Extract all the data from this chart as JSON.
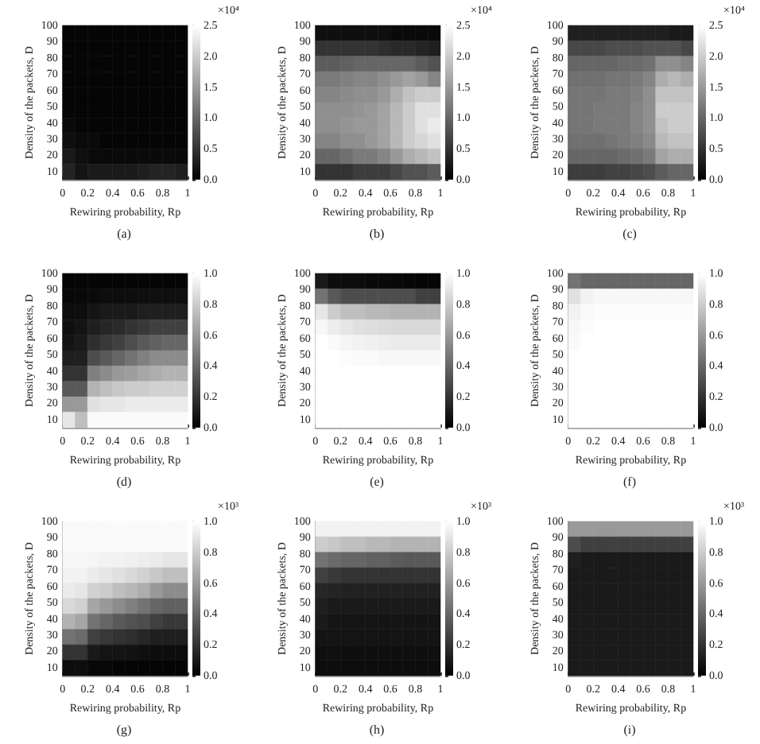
{
  "chart_data": [
    {
      "type": "heatmap",
      "title": "(a)",
      "xlabel": "Rewiring probability, Rp",
      "ylabel": "Density of the packets, D",
      "clabel": "×10⁴",
      "xlim": [
        0,
        1
      ],
      "xticks": [
        0,
        0.2,
        0.4,
        0.6,
        0.8,
        1
      ],
      "ylim": [
        5,
        100
      ],
      "yticks": [
        10,
        20,
        30,
        40,
        50,
        60,
        70,
        80,
        90,
        100
      ],
      "clim": [
        0,
        2.5
      ],
      "cticks": [
        {
          "value": 0,
          "label": "0.0"
        },
        {
          "value": 0.5,
          "label": "0.5"
        },
        {
          "value": 1,
          "label": "1.0"
        },
        {
          "value": 1.5,
          "label": "1.5"
        },
        {
          "value": 2,
          "label": "2.0"
        },
        {
          "value": 2.5,
          "label": "2.5"
        }
      ],
      "cells": [
        [
          0.05,
          0.05,
          0.05,
          0.05,
          0.05,
          0.05,
          0.05,
          0.05,
          0.05,
          0.05
        ],
        [
          0.05,
          0.05,
          0.05,
          0.05,
          0.05,
          0.05,
          0.05,
          0.05,
          0.05,
          0.05
        ],
        [
          0.05,
          0.05,
          0.05,
          0.05,
          0.05,
          0.05,
          0.05,
          0.05,
          0.05,
          0.05
        ],
        [
          0.05,
          0.05,
          0.05,
          0.05,
          0.05,
          0.05,
          0.05,
          0.05,
          0.05,
          0.05
        ],
        [
          0.05,
          0.05,
          0.05,
          0.05,
          0.05,
          0.05,
          0.05,
          0.05,
          0.05,
          0.05
        ],
        [
          0.05,
          0.05,
          0.05,
          0.05,
          0.05,
          0.05,
          0.05,
          0.05,
          0.05,
          0.05
        ],
        [
          0.1,
          0.05,
          0.05,
          0.05,
          0.05,
          0.05,
          0.05,
          0.05,
          0.05,
          0.05
        ],
        [
          0.15,
          0.1,
          0.1,
          0.05,
          0.05,
          0.05,
          0.05,
          0.05,
          0.05,
          0.05
        ],
        [
          0.25,
          0.15,
          0.1,
          0.1,
          0.1,
          0.1,
          0.1,
          0.1,
          0.1,
          0.1
        ],
        [
          0.35,
          0.2,
          0.25,
          0.25,
          0.25,
          0.25,
          0.3,
          0.35,
          0.35,
          0.3
        ]
      ]
    },
    {
      "type": "heatmap",
      "title": "(b)",
      "xlabel": "Rewiring probability, Rp",
      "ylabel": "Density of the packets, D",
      "clabel": "×10⁴",
      "xlim": [
        0,
        1
      ],
      "xticks": [
        0,
        0.2,
        0.4,
        0.6,
        0.8,
        1
      ],
      "ylim": [
        5,
        100
      ],
      "yticks": [
        10,
        20,
        30,
        40,
        50,
        60,
        70,
        80,
        90,
        100
      ],
      "clim": [
        0,
        2.5
      ],
      "cticks": [
        {
          "value": 0,
          "label": "0.0"
        },
        {
          "value": 0.5,
          "label": "0.5"
        },
        {
          "value": 1,
          "label": "1.0"
        },
        {
          "value": 1.5,
          "label": "1.5"
        },
        {
          "value": 2,
          "label": "2.0"
        },
        {
          "value": 2.5,
          "label": "2.5"
        }
      ],
      "cells": [
        [
          0.15,
          0.15,
          0.15,
          0.15,
          0.15,
          0.15,
          0.1,
          0.1,
          0.1,
          0.1
        ],
        [
          0.5,
          0.5,
          0.5,
          0.5,
          0.5,
          0.45,
          0.4,
          0.4,
          0.35,
          0.3
        ],
        [
          0.9,
          0.9,
          0.95,
          1.0,
          1.0,
          1.0,
          1.0,
          1.0,
          0.9,
          0.8
        ],
        [
          1.2,
          1.2,
          1.25,
          1.3,
          1.3,
          1.4,
          1.5,
          1.6,
          1.5,
          1.3
        ],
        [
          1.3,
          1.3,
          1.35,
          1.4,
          1.4,
          1.5,
          1.7,
          1.9,
          2.0,
          2.0
        ],
        [
          1.4,
          1.4,
          1.4,
          1.45,
          1.5,
          1.6,
          1.8,
          2.0,
          2.2,
          2.2
        ],
        [
          1.4,
          1.4,
          1.45,
          1.5,
          1.5,
          1.6,
          1.8,
          2.0,
          2.2,
          2.3
        ],
        [
          1.3,
          1.3,
          1.4,
          1.4,
          1.5,
          1.6,
          1.8,
          2.0,
          2.1,
          2.2
        ],
        [
          1.0,
          1.0,
          1.1,
          1.2,
          1.2,
          1.3,
          1.5,
          1.7,
          1.8,
          1.9
        ],
        [
          0.5,
          0.5,
          0.5,
          0.6,
          0.6,
          0.6,
          0.7,
          0.8,
          0.8,
          0.9
        ]
      ]
    },
    {
      "type": "heatmap",
      "title": "(c)",
      "xlabel": "Rewiring probability, Rp",
      "ylabel": "Density of the packets, D",
      "clabel": "×10⁴",
      "xlim": [
        0,
        1
      ],
      "xticks": [
        0,
        0.2,
        0.4,
        0.6,
        0.8,
        1
      ],
      "ylim": [
        5,
        100
      ],
      "yticks": [
        10,
        20,
        30,
        40,
        50,
        60,
        70,
        80,
        90,
        100
      ],
      "clim": [
        0,
        2.5
      ],
      "cticks": [
        {
          "value": 0,
          "label": "0.0"
        },
        {
          "value": 0.5,
          "label": "0.5"
        },
        {
          "value": 1,
          "label": "1.0"
        },
        {
          "value": 1.5,
          "label": "1.5"
        },
        {
          "value": 2,
          "label": "2.0"
        },
        {
          "value": 2.5,
          "label": "2.5"
        }
      ],
      "cells": [
        [
          0.3,
          0.3,
          0.3,
          0.3,
          0.3,
          0.3,
          0.3,
          0.3,
          0.25,
          0.25
        ],
        [
          0.7,
          0.7,
          0.7,
          0.75,
          0.75,
          0.75,
          0.8,
          0.8,
          0.8,
          0.7
        ],
        [
          1.0,
          1.0,
          1.0,
          1.0,
          1.05,
          1.05,
          1.1,
          1.4,
          1.4,
          1.3
        ],
        [
          1.1,
          1.1,
          1.1,
          1.15,
          1.15,
          1.2,
          1.3,
          1.7,
          1.8,
          1.7
        ],
        [
          1.15,
          1.15,
          1.15,
          1.2,
          1.2,
          1.25,
          1.4,
          1.9,
          1.9,
          1.9
        ],
        [
          1.15,
          1.15,
          1.2,
          1.2,
          1.2,
          1.3,
          1.4,
          2.0,
          2.0,
          2.0
        ],
        [
          1.15,
          1.15,
          1.2,
          1.2,
          1.2,
          1.3,
          1.4,
          1.9,
          2.0,
          2.0
        ],
        [
          1.1,
          1.1,
          1.1,
          1.15,
          1.2,
          1.25,
          1.35,
          1.8,
          1.9,
          1.9
        ],
        [
          1.0,
          1.0,
          1.0,
          1.0,
          1.05,
          1.1,
          1.2,
          1.6,
          1.7,
          1.7
        ],
        [
          0.6,
          0.6,
          0.6,
          0.65,
          0.65,
          0.7,
          0.75,
          0.9,
          1.0,
          1.0
        ]
      ]
    },
    {
      "type": "heatmap",
      "title": "(d)",
      "xlabel": "Rewiring probability, Rp",
      "ylabel": "Density of the packets, D",
      "xlim": [
        0,
        1
      ],
      "xticks": [
        0,
        0.2,
        0.4,
        0.6,
        0.8,
        1
      ],
      "ylim": [
        5,
        100
      ],
      "yticks": [
        10,
        20,
        30,
        40,
        50,
        60,
        70,
        80,
        90,
        100
      ],
      "clim": [
        0,
        1
      ],
      "cticks": [
        {
          "value": 0,
          "label": "0.0"
        },
        {
          "value": 0.2,
          "label": "0.2"
        },
        {
          "value": 0.4,
          "label": "0.4"
        },
        {
          "value": 0.6,
          "label": "0.6"
        },
        {
          "value": 0.8,
          "label": "0.8"
        },
        {
          "value": 1,
          "label": "1.0"
        }
      ],
      "cells": [
        [
          0.02,
          0.02,
          0.02,
          0.02,
          0.02,
          0.02,
          0.02,
          0.02,
          0.02,
          0.02
        ],
        [
          0.03,
          0.03,
          0.04,
          0.05,
          0.05,
          0.05,
          0.06,
          0.06,
          0.06,
          0.06
        ],
        [
          0.05,
          0.05,
          0.08,
          0.1,
          0.1,
          0.1,
          0.12,
          0.12,
          0.12,
          0.12
        ],
        [
          0.06,
          0.08,
          0.12,
          0.15,
          0.17,
          0.2,
          0.22,
          0.25,
          0.25,
          0.25
        ],
        [
          0.08,
          0.1,
          0.18,
          0.22,
          0.25,
          0.3,
          0.35,
          0.38,
          0.4,
          0.4
        ],
        [
          0.12,
          0.12,
          0.3,
          0.35,
          0.4,
          0.45,
          0.5,
          0.55,
          0.55,
          0.55
        ],
        [
          0.2,
          0.2,
          0.5,
          0.55,
          0.6,
          0.62,
          0.65,
          0.68,
          0.7,
          0.7
        ],
        [
          0.35,
          0.35,
          0.7,
          0.75,
          0.78,
          0.8,
          0.8,
          0.82,
          0.82,
          0.82
        ],
        [
          0.6,
          0.6,
          0.88,
          0.9,
          0.9,
          0.92,
          0.92,
          0.92,
          0.92,
          0.92
        ],
        [
          0.9,
          0.75,
          0.98,
          0.98,
          0.98,
          0.98,
          0.98,
          0.98,
          0.98,
          0.98
        ]
      ]
    },
    {
      "type": "heatmap",
      "title": "(e)",
      "xlabel": "Rewiring probability, Rp",
      "ylabel": "Density of the packets, D",
      "xlim": [
        0,
        1
      ],
      "xticks": [
        0,
        0.2,
        0.4,
        0.6,
        0.8,
        1
      ],
      "ylim": [
        5,
        100
      ],
      "yticks": [
        10,
        20,
        30,
        40,
        50,
        60,
        70,
        80,
        90,
        100
      ],
      "clim": [
        0,
        1
      ],
      "cticks": [
        {
          "value": 0,
          "label": "0.0"
        },
        {
          "value": 0.2,
          "label": "0.2"
        },
        {
          "value": 0.4,
          "label": "0.4"
        },
        {
          "value": 0.6,
          "label": "0.6"
        },
        {
          "value": 0.8,
          "label": "0.8"
        },
        {
          "value": 1,
          "label": "1.0"
        }
      ],
      "cells": [
        [
          0.1,
          0.05,
          0.05,
          0.05,
          0.04,
          0.04,
          0.03,
          0.03,
          0.02,
          0.02
        ],
        [
          0.45,
          0.35,
          0.3,
          0.3,
          0.3,
          0.3,
          0.3,
          0.3,
          0.25,
          0.25
        ],
        [
          0.9,
          0.8,
          0.75,
          0.75,
          0.72,
          0.72,
          0.7,
          0.7,
          0.7,
          0.7
        ],
        [
          0.97,
          0.93,
          0.9,
          0.88,
          0.87,
          0.86,
          0.85,
          0.85,
          0.85,
          0.85
        ],
        [
          1,
          0.98,
          0.96,
          0.95,
          0.94,
          0.93,
          0.92,
          0.92,
          0.92,
          0.92
        ],
        [
          1,
          1,
          0.99,
          0.98,
          0.98,
          0.97,
          0.97,
          0.97,
          0.97,
          0.97
        ],
        [
          1,
          1,
          1,
          1,
          1,
          1,
          1,
          1,
          1,
          1
        ],
        [
          1,
          1,
          1,
          1,
          1,
          1,
          1,
          1,
          1,
          1
        ],
        [
          1,
          1,
          1,
          1,
          1,
          1,
          1,
          1,
          1,
          1
        ],
        [
          1,
          1,
          1,
          1,
          1,
          1,
          1,
          1,
          1,
          1
        ]
      ]
    },
    {
      "type": "heatmap",
      "title": "(f)",
      "xlabel": "Rewiring probability, Rp",
      "ylabel": "Density of the packets, D",
      "xlim": [
        0,
        1
      ],
      "xticks": [
        0,
        0.2,
        0.4,
        0.6,
        0.8,
        1
      ],
      "ylim": [
        5,
        100
      ],
      "yticks": [
        10,
        20,
        30,
        40,
        50,
        60,
        70,
        80,
        90,
        100
      ],
      "clim": [
        0,
        1
      ],
      "cticks": [
        {
          "value": 0,
          "label": "0.0"
        },
        {
          "value": 0.2,
          "label": "0.2"
        },
        {
          "value": 0.4,
          "label": "0.4"
        },
        {
          "value": 0.6,
          "label": "0.6"
        },
        {
          "value": 0.8,
          "label": "0.8"
        },
        {
          "value": 1,
          "label": "1.0"
        }
      ],
      "cells": [
        [
          0.45,
          0.4,
          0.4,
          0.4,
          0.4,
          0.4,
          0.4,
          0.4,
          0.4,
          0.4
        ],
        [
          0.88,
          0.95,
          0.97,
          0.97,
          0.97,
          0.97,
          0.97,
          0.97,
          0.97,
          0.97
        ],
        [
          0.95,
          0.98,
          0.99,
          0.99,
          0.99,
          0.99,
          0.99,
          0.99,
          0.99,
          0.99
        ],
        [
          0.97,
          0.99,
          1,
          1,
          1,
          1,
          1,
          1,
          1,
          1
        ],
        [
          0.98,
          1,
          1,
          1,
          1,
          1,
          1,
          1,
          1,
          1
        ],
        [
          1,
          1,
          1,
          1,
          1,
          1,
          1,
          1,
          1,
          1
        ],
        [
          1,
          1,
          1,
          1,
          1,
          1,
          1,
          1,
          1,
          1
        ],
        [
          1,
          1,
          1,
          1,
          1,
          1,
          1,
          1,
          1,
          1
        ],
        [
          1,
          1,
          1,
          1,
          1,
          1,
          1,
          1,
          1,
          1
        ],
        [
          1,
          1,
          1,
          1,
          1,
          1,
          1,
          1,
          1,
          1
        ]
      ]
    },
    {
      "type": "heatmap",
      "title": "(g)",
      "xlabel": "Rewiring probability, Rp",
      "ylabel": "Density of the packets, D",
      "clabel": "×10³",
      "xlim": [
        0,
        1
      ],
      "xticks": [
        0,
        0.2,
        0.4,
        0.6,
        0.8,
        1
      ],
      "ylim": [
        5,
        100
      ],
      "yticks": [
        10,
        20,
        30,
        40,
        50,
        60,
        70,
        80,
        90,
        100
      ],
      "clim": [
        0,
        1
      ],
      "cticks": [
        {
          "value": 0,
          "label": "0.0"
        },
        {
          "value": 0.2,
          "label": "0.2"
        },
        {
          "value": 0.4,
          "label": "0.4"
        },
        {
          "value": 0.6,
          "label": "0.6"
        },
        {
          "value": 0.8,
          "label": "0.8"
        },
        {
          "value": 1,
          "label": "1.0"
        }
      ],
      "cells": [
        [
          0.98,
          0.98,
          0.98,
          0.98,
          0.98,
          0.98,
          0.98,
          0.98,
          0.98,
          0.98
        ],
        [
          0.98,
          0.98,
          0.98,
          0.98,
          0.98,
          0.98,
          0.98,
          0.98,
          0.98,
          0.98
        ],
        [
          0.97,
          0.97,
          0.96,
          0.95,
          0.95,
          0.94,
          0.93,
          0.92,
          0.9,
          0.9
        ],
        [
          0.95,
          0.95,
          0.92,
          0.9,
          0.88,
          0.85,
          0.82,
          0.78,
          0.75,
          0.75
        ],
        [
          0.92,
          0.9,
          0.82,
          0.8,
          0.75,
          0.72,
          0.68,
          0.6,
          0.55,
          0.55
        ],
        [
          0.85,
          0.82,
          0.65,
          0.6,
          0.55,
          0.5,
          0.45,
          0.4,
          0.38,
          0.38
        ],
        [
          0.7,
          0.65,
          0.45,
          0.4,
          0.35,
          0.32,
          0.3,
          0.25,
          0.22,
          0.22
        ],
        [
          0.45,
          0.42,
          0.25,
          0.22,
          0.2,
          0.18,
          0.15,
          0.12,
          0.12,
          0.12
        ],
        [
          0.2,
          0.2,
          0.1,
          0.08,
          0.08,
          0.07,
          0.06,
          0.05,
          0.05,
          0.05
        ],
        [
          0.05,
          0.05,
          0.03,
          0.03,
          0.02,
          0.02,
          0.02,
          0.02,
          0.02,
          0.02
        ]
      ]
    },
    {
      "type": "heatmap",
      "title": "(h)",
      "xlabel": "Rewiring probability, Rp",
      "ylabel": "Density of the packets, D",
      "clabel": "×10³",
      "xlim": [
        0,
        1
      ],
      "xticks": [
        0,
        0.2,
        0.4,
        0.6,
        0.8,
        1
      ],
      "ylim": [
        5,
        100
      ],
      "yticks": [
        10,
        20,
        30,
        40,
        50,
        60,
        70,
        80,
        90,
        100
      ],
      "clim": [
        0,
        1
      ],
      "cticks": [
        {
          "value": 0,
          "label": "0.0"
        },
        {
          "value": 0.2,
          "label": "0.2"
        },
        {
          "value": 0.4,
          "label": "0.4"
        },
        {
          "value": 0.6,
          "label": "0.6"
        },
        {
          "value": 0.8,
          "label": "0.8"
        },
        {
          "value": 1,
          "label": "1.0"
        }
      ],
      "cells": [
        [
          0.95,
          0.95,
          0.95,
          0.95,
          0.95,
          0.95,
          0.95,
          0.95,
          0.95,
          0.95
        ],
        [
          0.8,
          0.78,
          0.75,
          0.75,
          0.72,
          0.72,
          0.7,
          0.7,
          0.7,
          0.7
        ],
        [
          0.45,
          0.42,
          0.4,
          0.4,
          0.38,
          0.38,
          0.36,
          0.35,
          0.35,
          0.35
        ],
        [
          0.25,
          0.22,
          0.2,
          0.2,
          0.2,
          0.2,
          0.2,
          0.2,
          0.2,
          0.2
        ],
        [
          0.15,
          0.14,
          0.13,
          0.13,
          0.13,
          0.13,
          0.13,
          0.13,
          0.13,
          0.13
        ],
        [
          0.12,
          0.1,
          0.1,
          0.1,
          0.1,
          0.1,
          0.1,
          0.1,
          0.1,
          0.1
        ],
        [
          0.1,
          0.08,
          0.08,
          0.08,
          0.08,
          0.08,
          0.08,
          0.08,
          0.08,
          0.08
        ],
        [
          0.08,
          0.08,
          0.08,
          0.08,
          0.08,
          0.08,
          0.08,
          0.08,
          0.08,
          0.08
        ],
        [
          0.06,
          0.06,
          0.06,
          0.06,
          0.06,
          0.06,
          0.06,
          0.06,
          0.06,
          0.06
        ],
        [
          0.05,
          0.05,
          0.05,
          0.05,
          0.05,
          0.05,
          0.05,
          0.05,
          0.05,
          0.05
        ]
      ]
    },
    {
      "type": "heatmap",
      "title": "(i)",
      "xlabel": "Rewiring probability, Rp",
      "ylabel": "Density of the packets, D",
      "clabel": "×10³",
      "xlim": [
        0,
        1
      ],
      "xticks": [
        0,
        0.2,
        0.4,
        0.6,
        0.8,
        1
      ],
      "ylim": [
        5,
        100
      ],
      "yticks": [
        10,
        20,
        30,
        40,
        50,
        60,
        70,
        80,
        90,
        100
      ],
      "clim": [
        0,
        1
      ],
      "cticks": [
        {
          "value": 0,
          "label": "0.0"
        },
        {
          "value": 0.2,
          "label": "0.2"
        },
        {
          "value": 0.4,
          "label": "0.4"
        },
        {
          "value": 0.6,
          "label": "0.6"
        },
        {
          "value": 0.8,
          "label": "0.8"
        },
        {
          "value": 1,
          "label": "1.0"
        }
      ],
      "cells": [
        [
          0.6,
          0.6,
          0.6,
          0.6,
          0.6,
          0.6,
          0.6,
          0.6,
          0.6,
          0.6
        ],
        [
          0.3,
          0.25,
          0.25,
          0.25,
          0.25,
          0.25,
          0.25,
          0.25,
          0.25,
          0.25
        ],
        [
          0.12,
          0.1,
          0.1,
          0.1,
          0.1,
          0.1,
          0.1,
          0.1,
          0.1,
          0.1
        ],
        [
          0.1,
          0.1,
          0.1,
          0.1,
          0.1,
          0.1,
          0.1,
          0.1,
          0.1,
          0.1
        ],
        [
          0.1,
          0.1,
          0.1,
          0.1,
          0.1,
          0.1,
          0.1,
          0.1,
          0.1,
          0.1
        ],
        [
          0.1,
          0.1,
          0.1,
          0.1,
          0.1,
          0.1,
          0.1,
          0.1,
          0.1,
          0.1
        ],
        [
          0.1,
          0.1,
          0.1,
          0.1,
          0.1,
          0.1,
          0.1,
          0.1,
          0.1,
          0.1
        ],
        [
          0.1,
          0.1,
          0.1,
          0.1,
          0.1,
          0.1,
          0.1,
          0.1,
          0.1,
          0.1
        ],
        [
          0.1,
          0.1,
          0.1,
          0.1,
          0.1,
          0.1,
          0.1,
          0.1,
          0.1,
          0.1
        ],
        [
          0.1,
          0.1,
          0.1,
          0.1,
          0.1,
          0.1,
          0.1,
          0.1,
          0.1,
          0.1
        ]
      ]
    }
  ]
}
